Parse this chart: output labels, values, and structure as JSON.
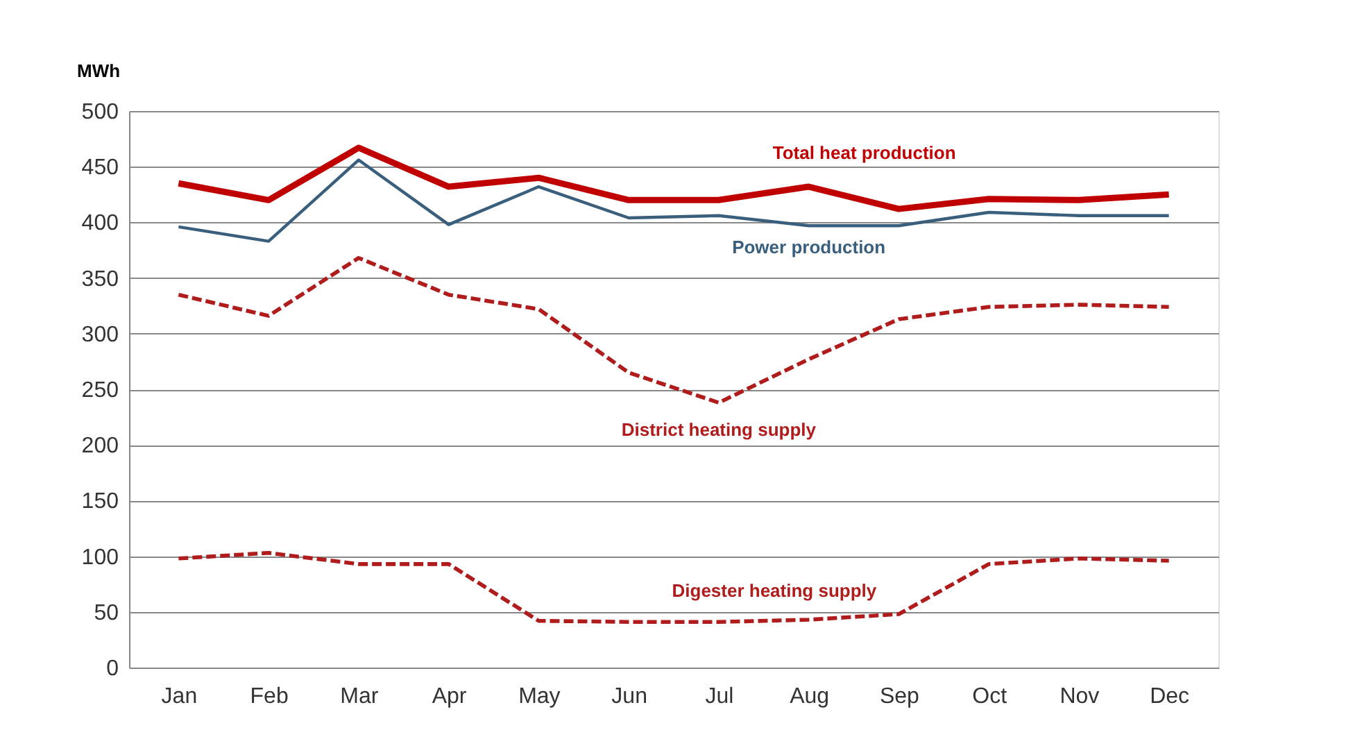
{
  "chart_data": {
    "type": "line",
    "ylabel": "MWh",
    "categories": [
      "Jan",
      "Feb",
      "Mar",
      "Apr",
      "May",
      "Jun",
      "Jul",
      "Aug",
      "Sep",
      "Oct",
      "Nov",
      "Dec"
    ],
    "series": [
      {
        "name": "Total  heat production",
        "color": "#c00000",
        "line_style": "solid",
        "values": [
          435,
          420,
          467,
          432,
          440,
          420,
          420,
          432,
          412,
          421,
          420,
          425
        ]
      },
      {
        "name": "Power production",
        "color": "#3a5f7d",
        "line_style": "solid",
        "values": [
          396,
          383,
          456,
          398,
          432,
          404,
          406,
          397,
          397,
          409,
          406,
          406
        ]
      },
      {
        "name": "District heating supply",
        "color": "#b01c1c",
        "line_style": "dashed",
        "values": [
          335,
          316,
          368,
          335,
          322,
          265,
          238,
          277,
          313,
          324,
          326,
          324
        ]
      },
      {
        "name": "Digester heating supply",
        "color": "#b01c1c",
        "line_style": "dashed",
        "values": [
          98,
          103,
          93,
          93,
          42,
          41,
          41,
          43,
          48,
          93,
          98,
          96
        ]
      }
    ],
    "ylim": [
      0,
      500
    ],
    "yticks": [
      0,
      50,
      100,
      150,
      200,
      250,
      300,
      350,
      400,
      450,
      500
    ],
    "grid": "y"
  }
}
